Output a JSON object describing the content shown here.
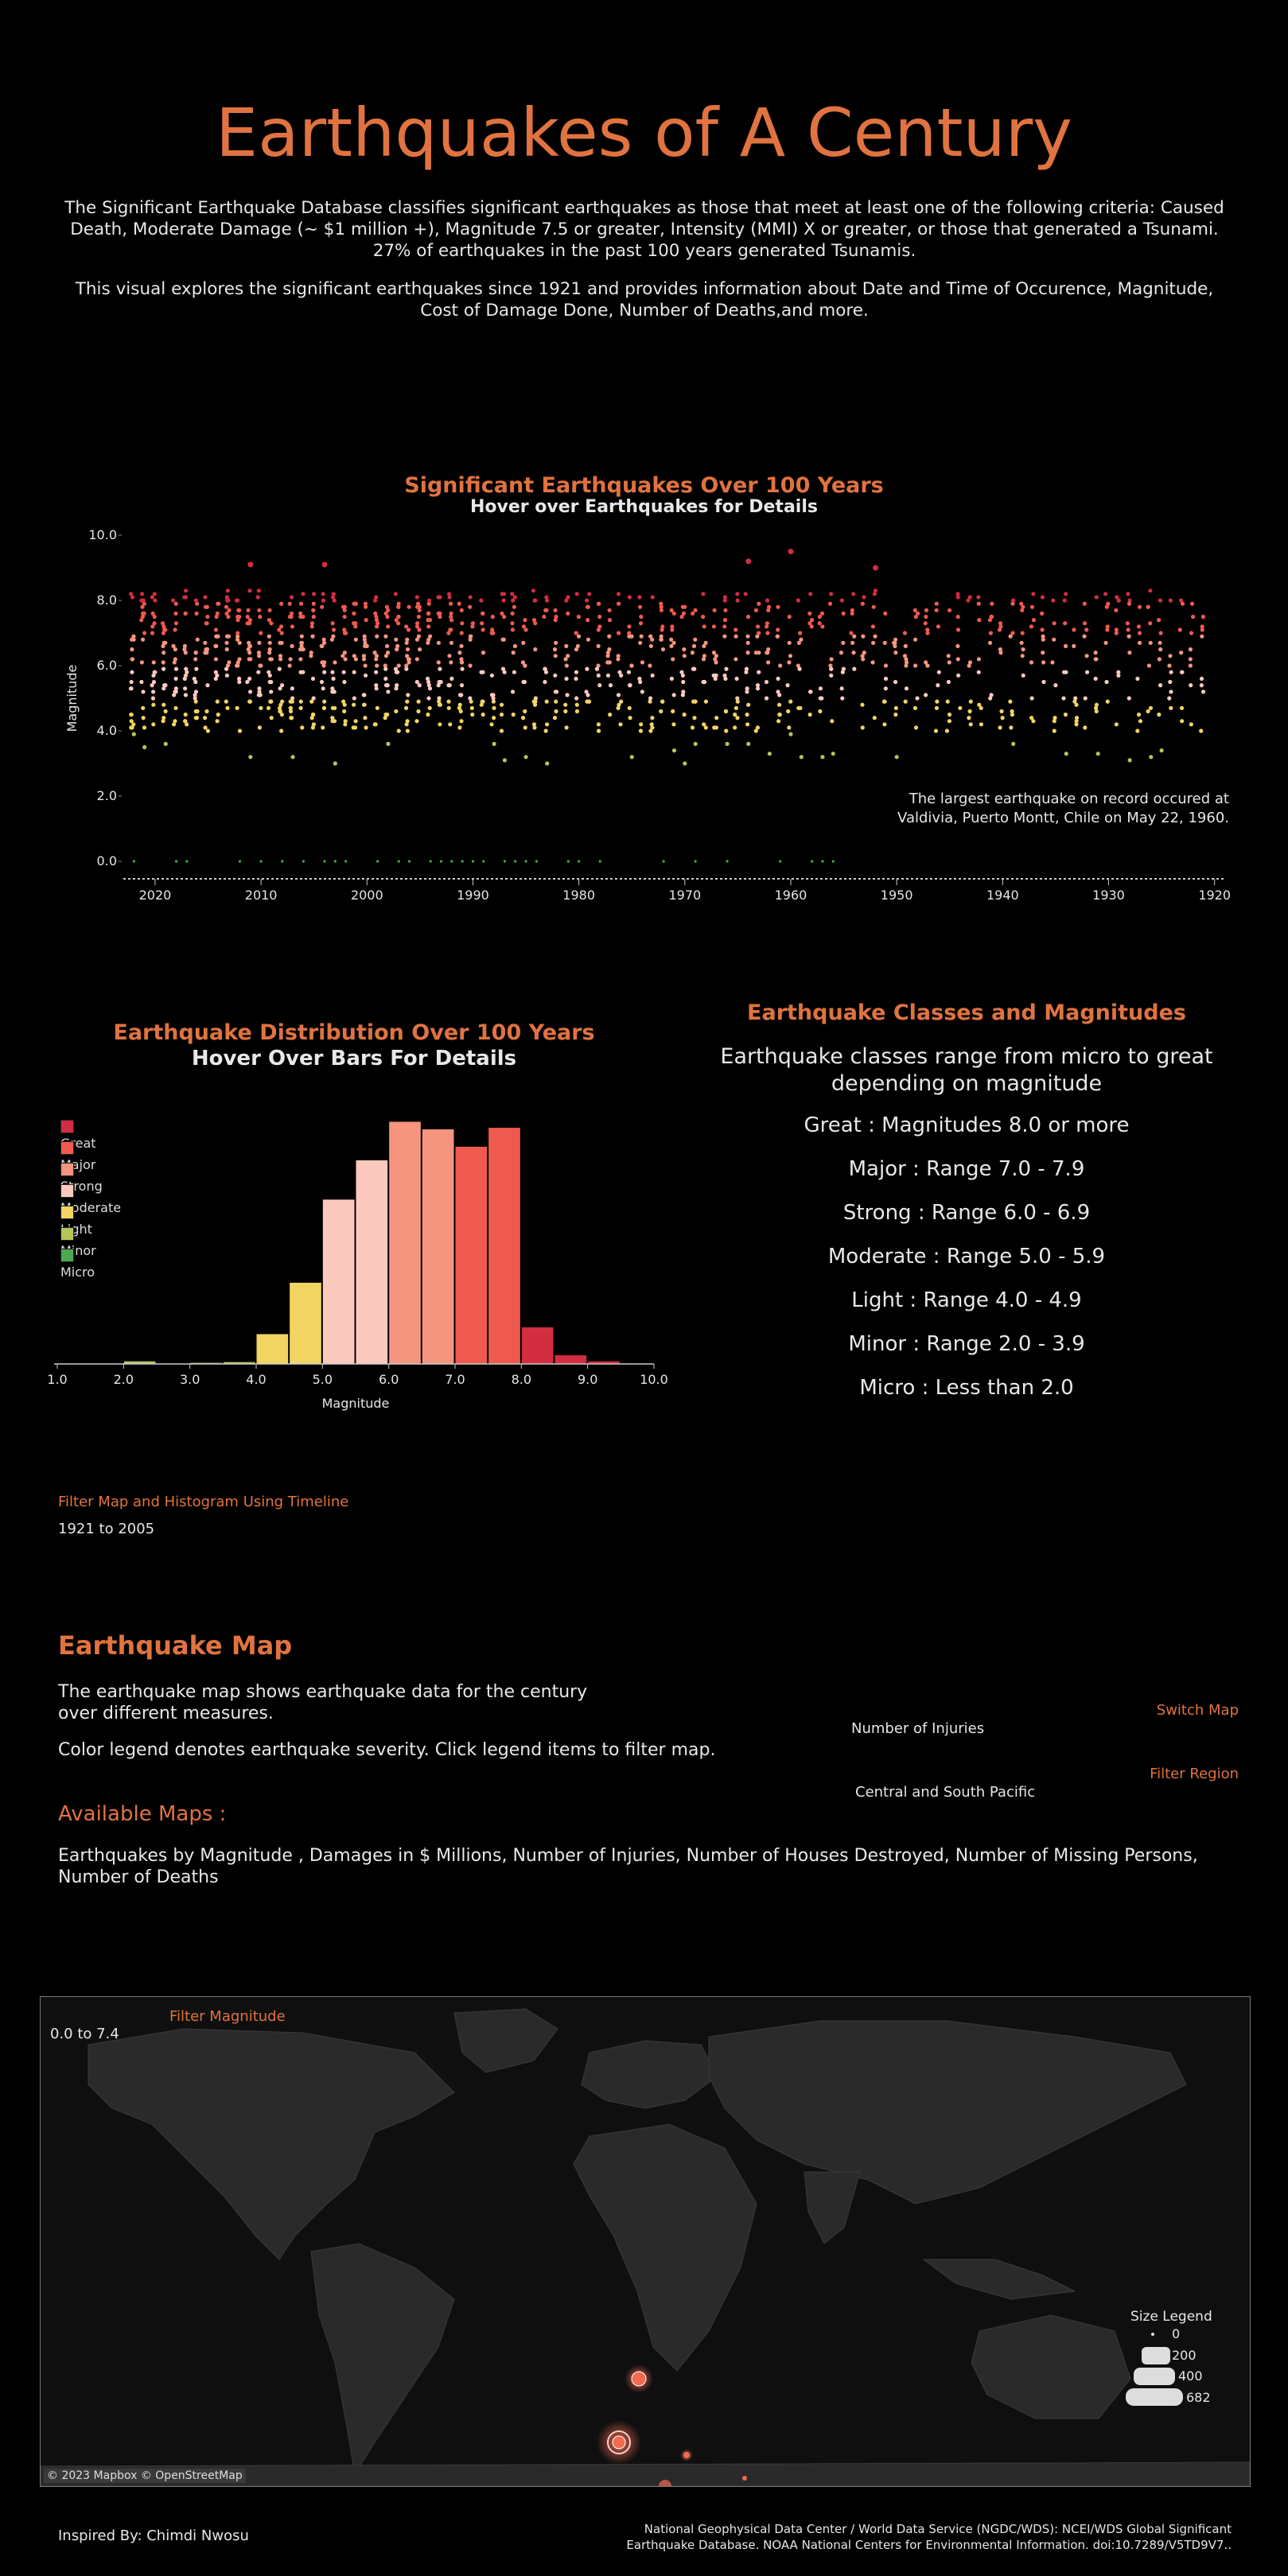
{
  "header": {
    "title": "Earthquakes of A Century",
    "intro_1": "The Significant Earthquake Database classifies significant earthquakes as those  that meet at least one of the following criteria: Caused Death, Moderate Damage (~ $1 million +), Magnitude 7.5 or greater,  Intensity (MMI) X or greater, or those that generated a Tsunami.",
    "intro_2": "27% of earthquakes in the past 100 years generated Tsunamis.",
    "intro_3": "This visual explores the significant earthquakes since 1921 and provides information about Date and Time of Occurence, Magnitude, Cost of Damage Done, Number of Deaths,and more."
  },
  "scatter": {
    "title": "Significant Earthquakes Over 100 Years",
    "subtitle": "Hover over Earthquakes for Details",
    "annotation_1": "The largest earthquake on record occured at",
    "annotation_2": "Valdivia, Puerto Montt, Chile on May 22, 1960."
  },
  "histogram": {
    "title": "Earthquake Distribution Over 100 Years",
    "subtitle": "Hover Over Bars For Details"
  },
  "legend": [
    {
      "label": "Great",
      "color": "#d22d41"
    },
    {
      "label": "Major",
      "color": "#ef5a4f"
    },
    {
      "label": "Strong",
      "color": "#f5957f"
    },
    {
      "label": "Moderate",
      "color": "#fcc9bf"
    },
    {
      "label": "Light",
      "color": "#f2d463"
    },
    {
      "label": "Minor",
      "color": "#b7c45a"
    },
    {
      "label": "Micro",
      "color": "#4ea84f"
    }
  ],
  "classes": {
    "title": "Earthquake Classes and Magnitudes",
    "intro": "Earthquake classes range from micro to great depending on magnitude",
    "lines": [
      "Great : Magnitudes  8.0 or more",
      "Major : Range 7.0 -  7.9",
      "Strong : Range  6.0 -  6.9",
      "Moderate : Range  5.0 -  5.9",
      "Light : Range  4.0 -  4.9",
      "Minor : Range  2.0 -  3.9",
      "Micro : Less than  2.0"
    ]
  },
  "filters": {
    "timeline_label": "Filter Map and Histogram Using Timeline",
    "timeline_value": "1921 to 2005",
    "switch_map_label": "Switch Map",
    "switch_map_value": "Number of Injuries",
    "region_label": "Filter Region",
    "region_value": "Central and South Pacific",
    "magnitude_label": "Filter Magnitude",
    "magnitude_value": "0.0 to 7.4"
  },
  "map_section": {
    "title": "Earthquake Map",
    "desc_1": "The earthquake map shows earthquake data for the century",
    "desc_2": "over different measures.",
    "desc_3": "Color legend denotes earthquake severity. Click legend items to filter map.",
    "available_title": "Available Maps :",
    "available_list": "Earthquakes by Magnitude , Damages in $ Millions, Number of Injuries, Number of Houses Destroyed, Number of Missing Persons, Number of Deaths",
    "attribution": "© 2023 Mapbox © OpenStreetMap",
    "size_legend_title": "Size Legend",
    "size_legend": [
      "0",
      "200",
      "400",
      "682"
    ]
  },
  "footer": {
    "credit": "Inspired By: Chimdi Nwosu",
    "source_1": "National Geophysical Data Center / World Data Service (NGDC/WDS): NCEI/WDS Global Significant",
    "source_2": "Earthquake Database. NOAA National Centers for Environmental Information. doi:10.7289/V5TD9V7.."
  },
  "chart_data": [
    {
      "type": "scatter",
      "title": "Significant Earthquakes Over 100 Years",
      "ylabel": "Magnitude",
      "xlim": [
        2023,
        1919
      ],
      "ylim": [
        0,
        10
      ],
      "x_ticks": [
        "2020",
        "2010",
        "2000",
        "1990",
        "1980",
        "1970",
        "1960",
        "1950",
        "1940",
        "1930",
        "1920"
      ],
      "y_ticks": [
        "0.0",
        "2.0",
        "4.0",
        "6.0",
        "8.0",
        "10.0"
      ],
      "highlights": [
        {
          "x": 1960,
          "y": 9.5
        },
        {
          "x": 2011,
          "y": 9.1
        },
        {
          "x": 2004,
          "y": 9.1
        },
        {
          "x": 1964,
          "y": 9.2
        },
        {
          "x": 1952,
          "y": 9.0
        }
      ],
      "approx_range_by_year": "magnitudes mostly between 4.0 and 8.5 for every year 1921-2021"
    },
    {
      "type": "bar",
      "title": "Earthquake Distribution Over 100 Years",
      "xlabel": "Magnitude",
      "x_ticks": [
        "1.0",
        "2.0",
        "3.0",
        "4.0",
        "5.0",
        "6.0",
        "7.0",
        "8.0",
        "9.0",
        "10.0"
      ],
      "bins": [
        [
          2.0,
          2.5
        ],
        [
          2.5,
          3.0
        ],
        [
          3.0,
          3.5
        ],
        [
          3.5,
          4.0
        ],
        [
          4.0,
          4.5
        ],
        [
          4.5,
          5.0
        ],
        [
          5.0,
          5.5
        ],
        [
          5.5,
          6.0
        ],
        [
          6.0,
          6.5
        ],
        [
          6.5,
          7.0
        ],
        [
          7.0,
          7.5
        ],
        [
          7.5,
          8.0
        ],
        [
          8.0,
          8.5
        ],
        [
          8.5,
          9.0
        ],
        [
          9.0,
          9.5
        ]
      ],
      "values": [
        4,
        1,
        2,
        3,
        40,
        108,
        218,
        270,
        321,
        311,
        288,
        313,
        49,
        12,
        4
      ],
      "bin_colors": [
        "#b7c45a",
        "#b7c45a",
        "#b7c45a",
        "#b7c45a",
        "#f2d463",
        "#f2d463",
        "#fcc9bf",
        "#fcc9bf",
        "#f5957f",
        "#f5957f",
        "#ef5a4f",
        "#ef5a4f",
        "#d22d41",
        "#d22d41",
        "#d22d41"
      ]
    }
  ]
}
